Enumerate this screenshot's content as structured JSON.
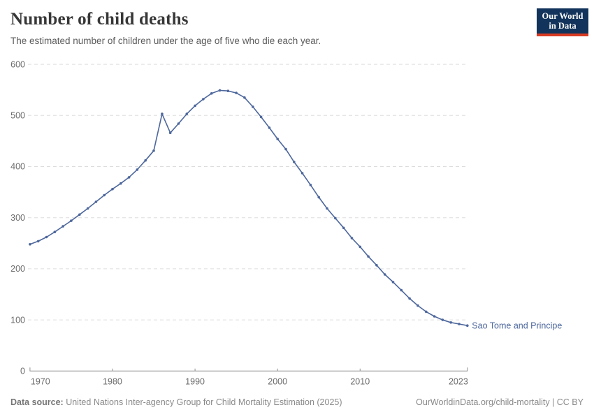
{
  "header": {
    "title": "Number of child deaths",
    "subtitle": "The estimated number of children under the age of five who die each year."
  },
  "logo": {
    "line1": "Our World",
    "line2": "in Data"
  },
  "footer": {
    "source_label": "Data source:",
    "source_text": " United Nations Inter-agency Group for Child Mortality Estimation (2025)",
    "rights_text": "OurWorldinData.org/child-mortality | CC BY"
  },
  "chart_data": {
    "type": "line",
    "title": "Number of child deaths",
    "entity_label": "Sao Tome and Principe",
    "x": [
      1970,
      1971,
      1972,
      1973,
      1974,
      1975,
      1976,
      1977,
      1978,
      1979,
      1980,
      1981,
      1982,
      1983,
      1984,
      1985,
      1986,
      1987,
      1988,
      1989,
      1990,
      1991,
      1992,
      1993,
      1994,
      1995,
      1996,
      1997,
      1998,
      1999,
      2000,
      2001,
      2002,
      2003,
      2004,
      2005,
      2006,
      2007,
      2008,
      2009,
      2010,
      2011,
      2012,
      2013,
      2014,
      2015,
      2016,
      2017,
      2018,
      2019,
      2020,
      2021,
      2022,
      2023
    ],
    "series": [
      {
        "name": "Sao Tome and Principe",
        "values": [
          248,
          254,
          262,
          272,
          283,
          294,
          306,
          318,
          331,
          344,
          356,
          367,
          379,
          394,
          412,
          431,
          503,
          466,
          484,
          503,
          519,
          532,
          543,
          549,
          548,
          544,
          535,
          517,
          497,
          476,
          454,
          434,
          409,
          387,
          364,
          340,
          318,
          299,
          280,
          260,
          243,
          224,
          207,
          189,
          174,
          158,
          142,
          128,
          116,
          107,
          100,
          95,
          92,
          89
        ]
      }
    ],
    "xlabel": "",
    "ylabel": "",
    "ylim": [
      0,
      600
    ],
    "xlim": [
      1970,
      2023
    ],
    "yticks": [
      0,
      100,
      200,
      300,
      400,
      500,
      600
    ],
    "xticks": [
      1970,
      1980,
      1990,
      2000,
      2010,
      2023
    ],
    "grid": "horizontal-dashed",
    "legend_position": "end-of-line",
    "line_color": "#4d679c",
    "marker": "dot"
  }
}
